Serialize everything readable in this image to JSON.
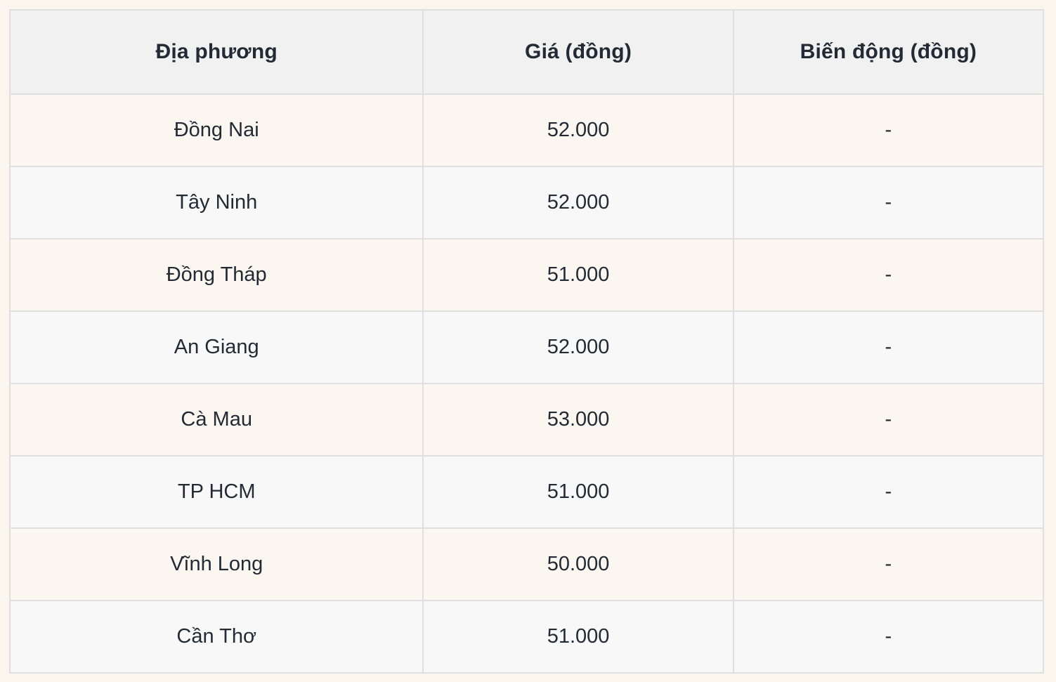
{
  "chart_data": {
    "type": "table",
    "title": "",
    "columns": [
      "Địa phương",
      "Giá (đồng)",
      "Biến động (đồng)"
    ],
    "rows": [
      [
        "Đồng Nai",
        "52.000",
        "-"
      ],
      [
        "Tây Ninh",
        "52.000",
        "-"
      ],
      [
        "Đồng Tháp",
        "51.000",
        "-"
      ],
      [
        "An Giang",
        "52.000",
        "-"
      ],
      [
        "Cà Mau",
        "53.000",
        "-"
      ],
      [
        "TP HCM",
        "51.000",
        "-"
      ],
      [
        "Vĩnh Long",
        "50.000",
        "-"
      ],
      [
        "Cần Thơ",
        "51.000",
        "-"
      ]
    ],
    "layout_hints": {
      "header_row": true,
      "alternating_row_stripes": true,
      "all_cells_centered": true
    }
  },
  "colors": {
    "page_bg": "#faf6ee",
    "header_bg": "#f1f1f1",
    "row_odd_bg": "#fbf7f0",
    "row_even_bg": "#f8f8f8",
    "border": "#dfdfdf",
    "text": "#222b35"
  }
}
